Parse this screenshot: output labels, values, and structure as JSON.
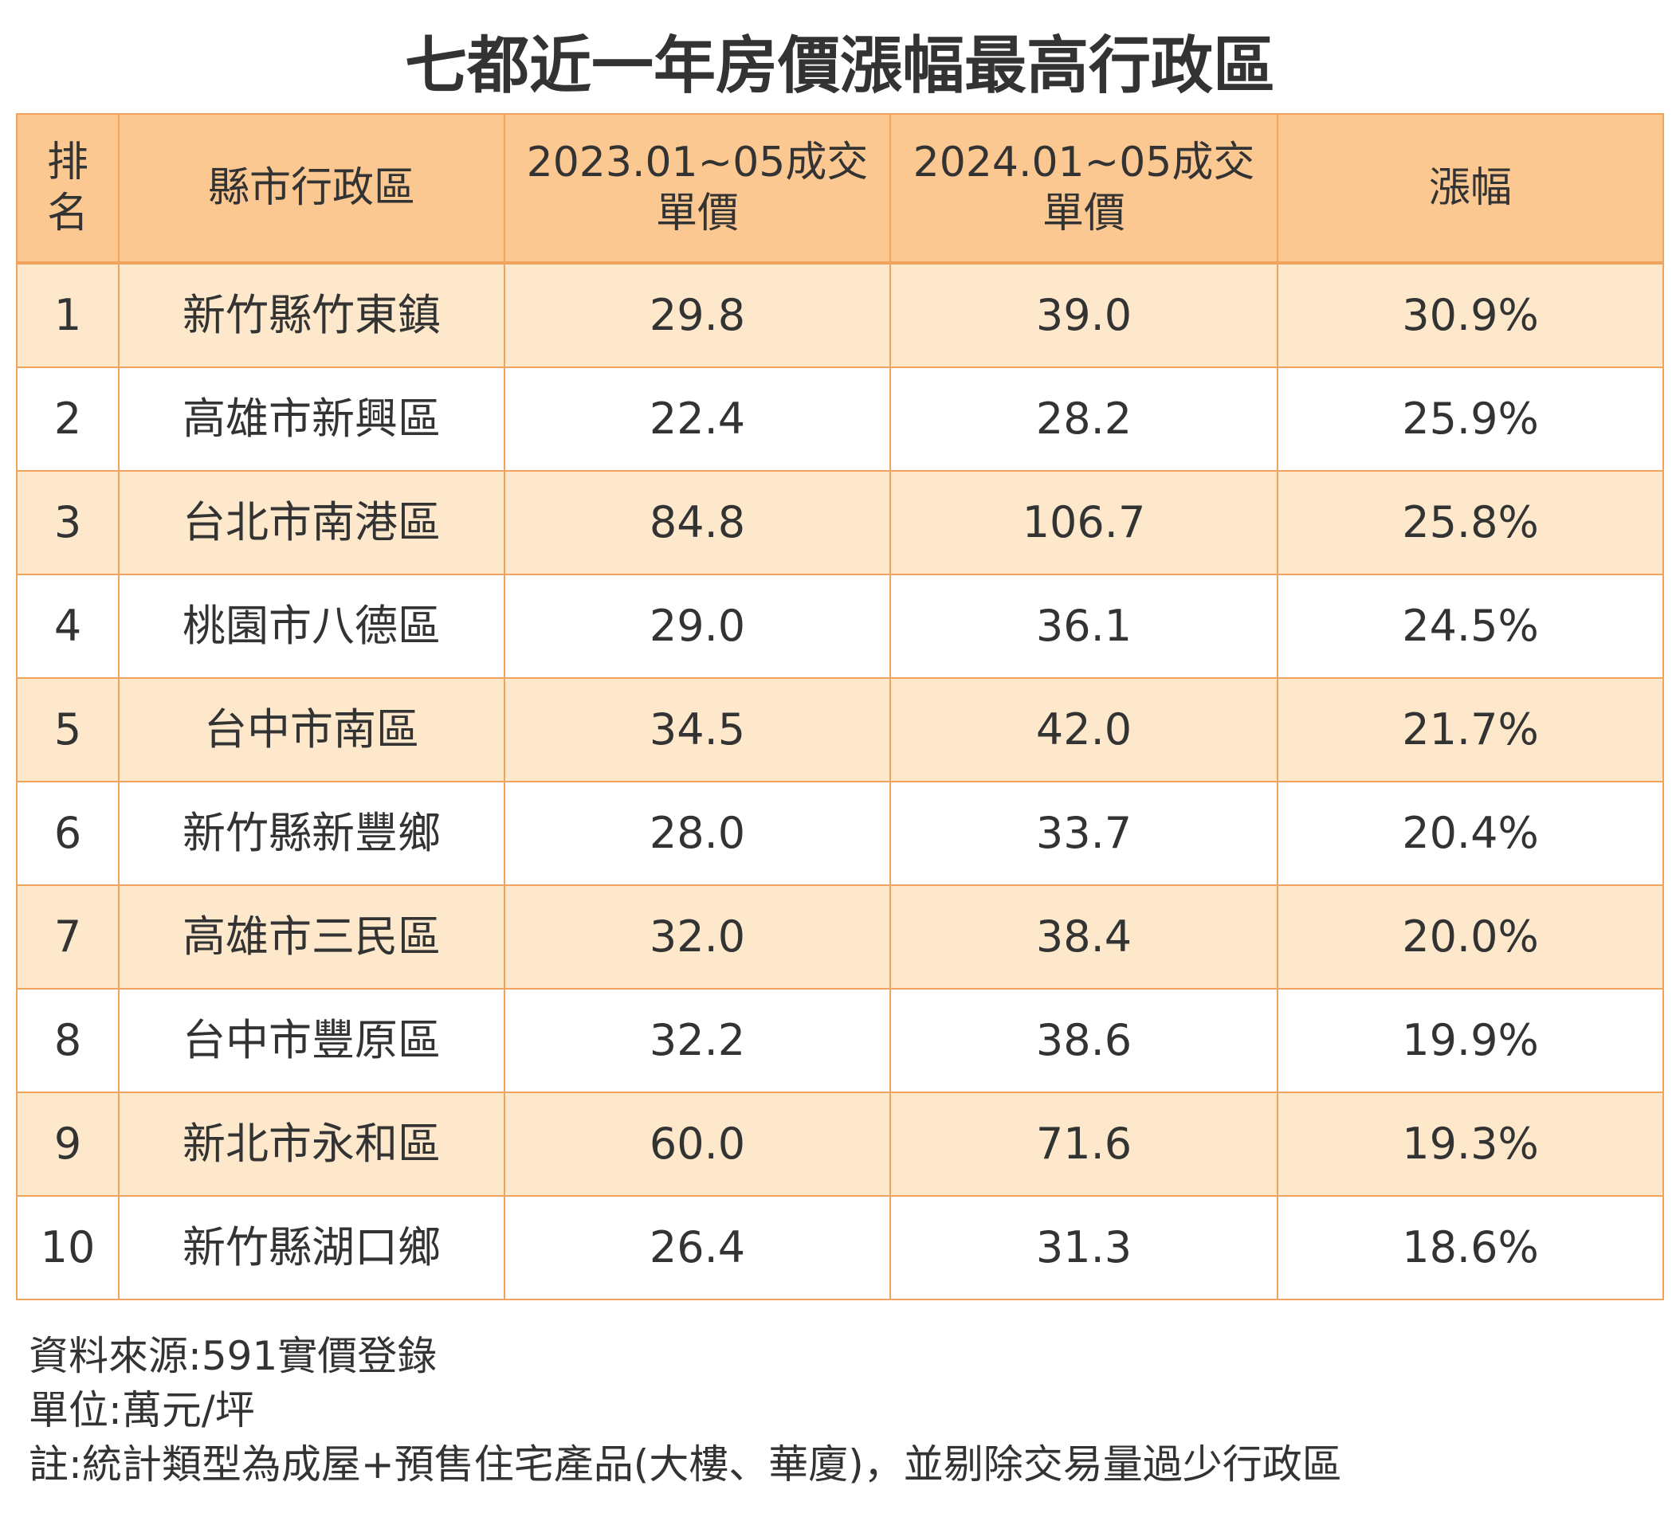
{
  "title": "七都近一年房價漲幅最高行政區",
  "table": {
    "headers": {
      "rank_line1": "排",
      "rank_line2": "名",
      "district": "縣市行政區",
      "price2023_line1": "2023.01~05成交",
      "price2023_line2": "單價",
      "price2024_line1": "2024.01~05成交",
      "price2024_line2": "單價",
      "increase": "漲幅"
    },
    "rows": [
      {
        "rank": "1",
        "district": "新竹縣竹東鎮",
        "price2023": "29.8",
        "price2024": "39.0",
        "increase": "30.9%"
      },
      {
        "rank": "2",
        "district": "高雄市新興區",
        "price2023": "22.4",
        "price2024": "28.2",
        "increase": "25.9%"
      },
      {
        "rank": "3",
        "district": "台北市南港區",
        "price2023": "84.8",
        "price2024": "106.7",
        "increase": "25.8%"
      },
      {
        "rank": "4",
        "district": "桃園市八德區",
        "price2023": "29.0",
        "price2024": "36.1",
        "increase": "24.5%"
      },
      {
        "rank": "5",
        "district": "台中市南區",
        "price2023": "34.5",
        "price2024": "42.0",
        "increase": "21.7%"
      },
      {
        "rank": "6",
        "district": "新竹縣新豐鄉",
        "price2023": "28.0",
        "price2024": "33.7",
        "increase": "20.4%"
      },
      {
        "rank": "7",
        "district": "高雄市三民區",
        "price2023": "32.0",
        "price2024": "38.4",
        "increase": "20.0%"
      },
      {
        "rank": "8",
        "district": "台中市豐原區",
        "price2023": "32.2",
        "price2024": "38.6",
        "increase": "19.9%"
      },
      {
        "rank": "9",
        "district": "新北市永和區",
        "price2023": "60.0",
        "price2024": "71.6",
        "increase": "19.3%"
      },
      {
        "rank": "10",
        "district": "新竹縣湖口鄉",
        "price2023": "26.4",
        "price2024": "31.3",
        "increase": "18.6%"
      }
    ]
  },
  "footnotes": {
    "source": "資料來源:591實價登錄",
    "unit": "單位:萬元/坪",
    "note": "註:統計類型為成屋+預售住宅產品(大樓、華廈)，並剔除交易量過少行政區"
  },
  "colors": {
    "header_bg": "#fcc892",
    "odd_row_bg": "#fde8cc",
    "even_row_bg": "#ffffff",
    "border": "#f0a35c",
    "text": "#333333"
  }
}
